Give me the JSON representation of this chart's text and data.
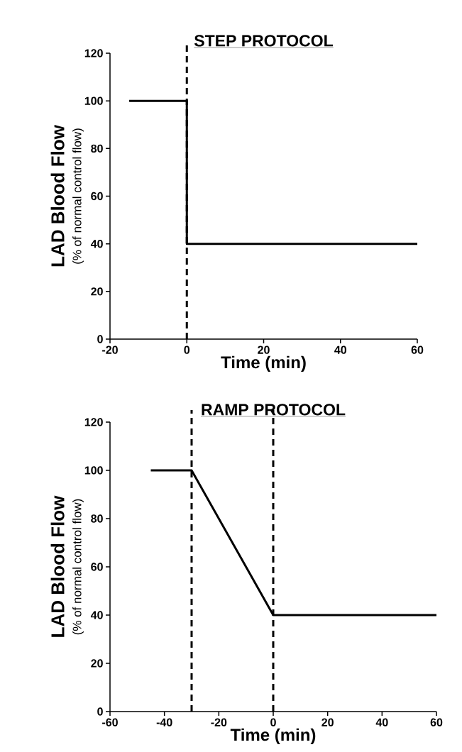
{
  "chart_data": [
    {
      "type": "line",
      "title": "STEP  PROTOCOL",
      "xlabel": "Time (min)",
      "ylabel": "LAD Blood Flow",
      "annotations": [
        "(% of normal control flow)"
      ],
      "x": [
        -15,
        0,
        0,
        60
      ],
      "series": [
        {
          "color": "#000000",
          "values": [
            100,
            100,
            40,
            40
          ]
        }
      ],
      "xlim": [
        -20,
        60
      ],
      "xticks": [
        -20,
        0,
        20,
        40,
        60
      ],
      "ylim": [
        0,
        120
      ],
      "yticks": [
        0,
        20,
        40,
        60,
        80,
        100,
        120
      ],
      "ref_lines": [
        {
          "axis": "x",
          "value": 0,
          "color": "#000000",
          "line_style": "dashed"
        }
      ],
      "grid": false,
      "marker": "none",
      "line_style": "solid"
    },
    {
      "type": "line",
      "title": "RAMP  PROTOCOL",
      "xlabel": "Time (min)",
      "ylabel": "LAD Blood Flow",
      "annotations": [
        "(% of normal control flow)"
      ],
      "x": [
        -45,
        -30,
        0,
        60
      ],
      "series": [
        {
          "color": "#000000",
          "values": [
            100,
            100,
            40,
            40
          ]
        }
      ],
      "xlim": [
        -60,
        60
      ],
      "xticks": [
        -60,
        -40,
        -20,
        0,
        20,
        40,
        60
      ],
      "ylim": [
        0,
        120
      ],
      "yticks": [
        0,
        20,
        40,
        60,
        80,
        100,
        120
      ],
      "ref_lines": [
        {
          "axis": "x",
          "value": -30,
          "color": "#000000",
          "line_style": "dashed"
        },
        {
          "axis": "x",
          "value": 0,
          "color": "#000000",
          "line_style": "dashed"
        }
      ],
      "grid": false,
      "marker": "none",
      "line_style": "solid"
    }
  ]
}
